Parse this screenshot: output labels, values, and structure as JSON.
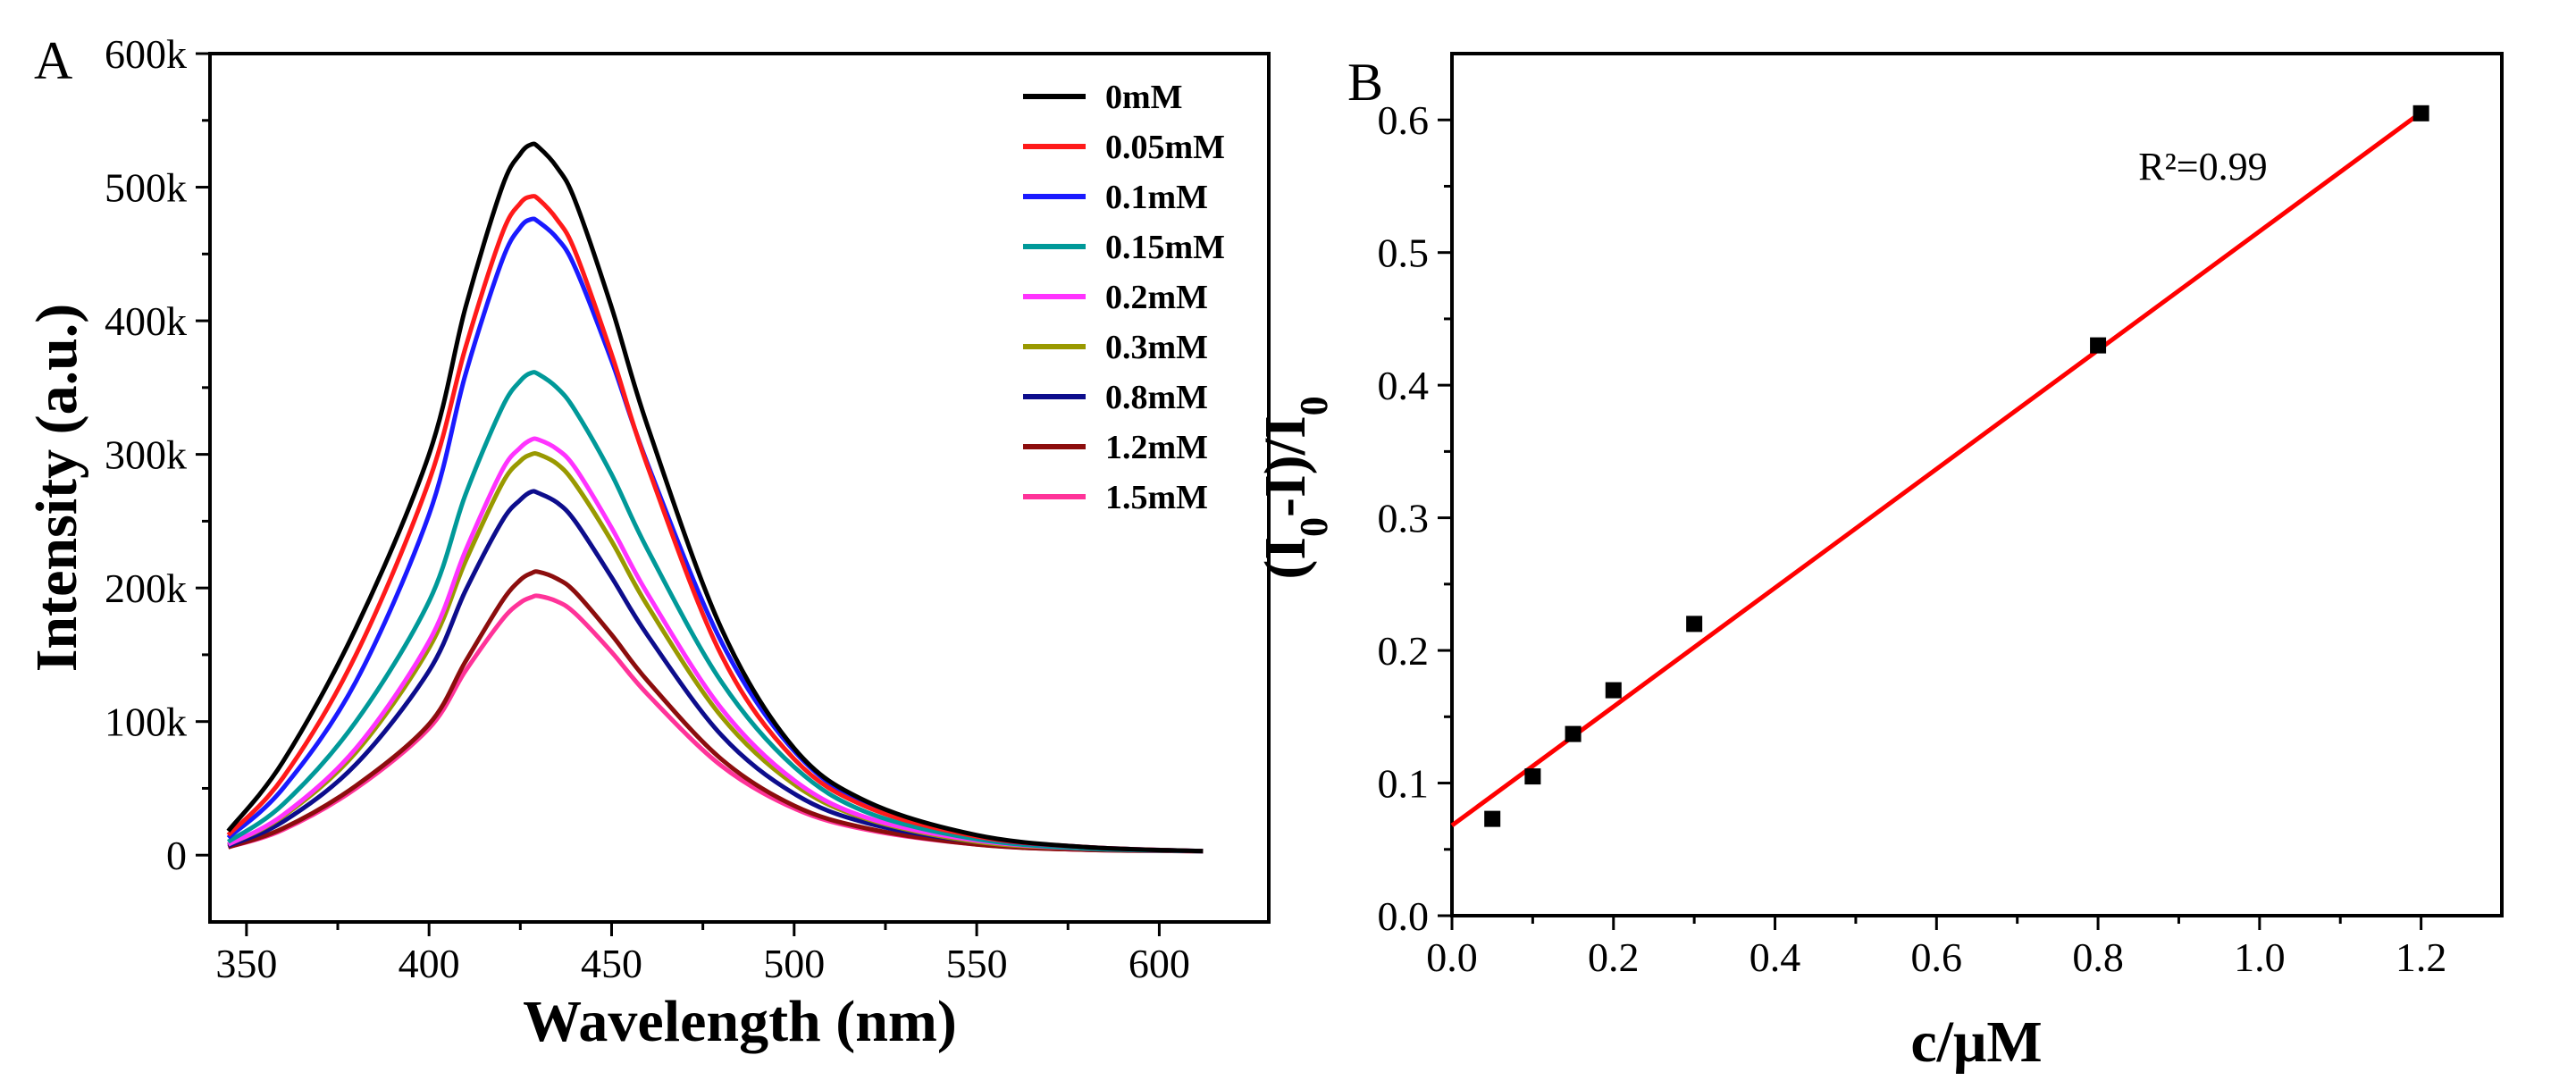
{
  "chart_data": [
    {
      "panel": "A",
      "type": "line",
      "title": "",
      "xlabel": "Wavelength (nm)",
      "ylabel": "Intensity (a.u.)",
      "xlim": [
        340,
        630
      ],
      "ylim": [
        -50000,
        600000
      ],
      "xticks": [
        350,
        400,
        450,
        500,
        550,
        600
      ],
      "yticks": [
        0,
        100000,
        200000,
        300000,
        400000,
        500000,
        600000
      ],
      "ytick_labels": [
        "0",
        "100k",
        "200k",
        "300k",
        "400k",
        "500k",
        "600k"
      ],
      "legend_position": "top-right",
      "x": [
        345,
        360,
        380,
        400,
        410,
        420,
        425,
        428,
        430,
        435,
        440,
        450,
        460,
        480,
        500,
        520,
        550,
        580,
        612
      ],
      "series": [
        {
          "name": "0mM",
          "color": "#000000",
          "peak": 532000,
          "values": [
            18000,
            70000,
            170000,
            300000,
            410000,
            500000,
            525000,
            532000,
            530000,
            515000,
            490000,
            410000,
            320000,
            170000,
            80000,
            40000,
            15000,
            6000,
            3000
          ]
        },
        {
          "name": "0.05mM",
          "color": "#ff1a1a",
          "peak": 493000,
          "values": [
            15000,
            58000,
            150000,
            280000,
            380000,
            465000,
            488000,
            493000,
            491000,
            476000,
            452000,
            375000,
            290000,
            150000,
            72000,
            36000,
            14000,
            6000,
            3000
          ]
        },
        {
          "name": "0.1mM",
          "color": "#1a1aff",
          "peak": 476000,
          "values": [
            13000,
            50000,
            130000,
            255000,
            360000,
            445000,
            470000,
            476000,
            474000,
            462000,
            440000,
            370000,
            292000,
            160000,
            78000,
            38000,
            14000,
            6000,
            3000
          ]
        },
        {
          "name": "0.15mM",
          "color": "#009999",
          "peak": 361000,
          "values": [
            10000,
            38000,
            100000,
            190000,
            270000,
            335000,
            355000,
            361000,
            360000,
            350000,
            333000,
            285000,
            228000,
            130000,
            66000,
            32000,
            12000,
            5000,
            3000
          ]
        },
        {
          "name": "0.2mM",
          "color": "#ff33ff",
          "peak": 311000,
          "values": [
            8000,
            30000,
            80000,
            160000,
            228000,
            288000,
            305000,
            311000,
            311000,
            304000,
            290000,
            245000,
            195000,
            110000,
            56000,
            28000,
            11000,
            5000,
            3000
          ]
        },
        {
          "name": "0.3mM",
          "color": "#999900",
          "peak": 300000,
          "values": [
            8000,
            29000,
            77000,
            155000,
            220000,
            278000,
            295000,
            300000,
            300000,
            293000,
            278000,
            235000,
            186000,
            104000,
            53000,
            27000,
            10000,
            5000,
            3000
          ]
        },
        {
          "name": "0.8mM",
          "color": "#0d0d8c",
          "peak": 272000,
          "values": [
            7000,
            25000,
            68000,
            138000,
            198000,
            250000,
            266000,
            272000,
            271000,
            264000,
            250000,
            208000,
            164000,
            90000,
            46000,
            24000,
            10000,
            5000,
            3000
          ]
        },
        {
          "name": "1.2mM",
          "color": "#8c0d0d",
          "peak": 212000,
          "values": [
            6000,
            20000,
            52000,
            98000,
            145000,
            190000,
            206000,
            211000,
            212000,
            207000,
            197000,
            165000,
            130000,
            72000,
            37000,
            20000,
            8000,
            4000,
            3000
          ]
        },
        {
          "name": "1.5mM",
          "color": "#ff3399",
          "peak": 194000,
          "values": [
            6000,
            19000,
            50000,
            95000,
            138000,
            176000,
            189000,
            193000,
            194000,
            190000,
            181000,
            152000,
            120000,
            67000,
            35000,
            19000,
            8000,
            4000,
            3000
          ]
        }
      ]
    },
    {
      "panel": "B",
      "type": "scatter",
      "title": "",
      "xlabel": "c/μM",
      "ylabel": "(I0-I)/I0",
      "xlim": [
        0.0,
        1.3
      ],
      "ylim": [
        0.0,
        0.65
      ],
      "xticks": [
        0.0,
        0.2,
        0.4,
        0.6,
        0.8,
        1.0,
        1.2
      ],
      "yticks": [
        0.0,
        0.1,
        0.2,
        0.3,
        0.4,
        0.5,
        0.6
      ],
      "points": [
        {
          "x": 0.05,
          "y": 0.073
        },
        {
          "x": 0.1,
          "y": 0.105
        },
        {
          "x": 0.15,
          "y": 0.137
        },
        {
          "x": 0.2,
          "y": 0.17
        },
        {
          "x": 0.3,
          "y": 0.22
        },
        {
          "x": 0.8,
          "y": 0.43
        },
        {
          "x": 1.2,
          "y": 0.605
        }
      ],
      "fit": {
        "slope": 0.448,
        "intercept": 0.068,
        "x_range": [
          0.0,
          1.2
        ],
        "color": "#ff0000"
      },
      "annotation": {
        "text": "R²=0.99",
        "x": 0.85,
        "y": 0.555
      }
    }
  ],
  "labels": {
    "panel_a": "A",
    "panel_b": "B"
  }
}
